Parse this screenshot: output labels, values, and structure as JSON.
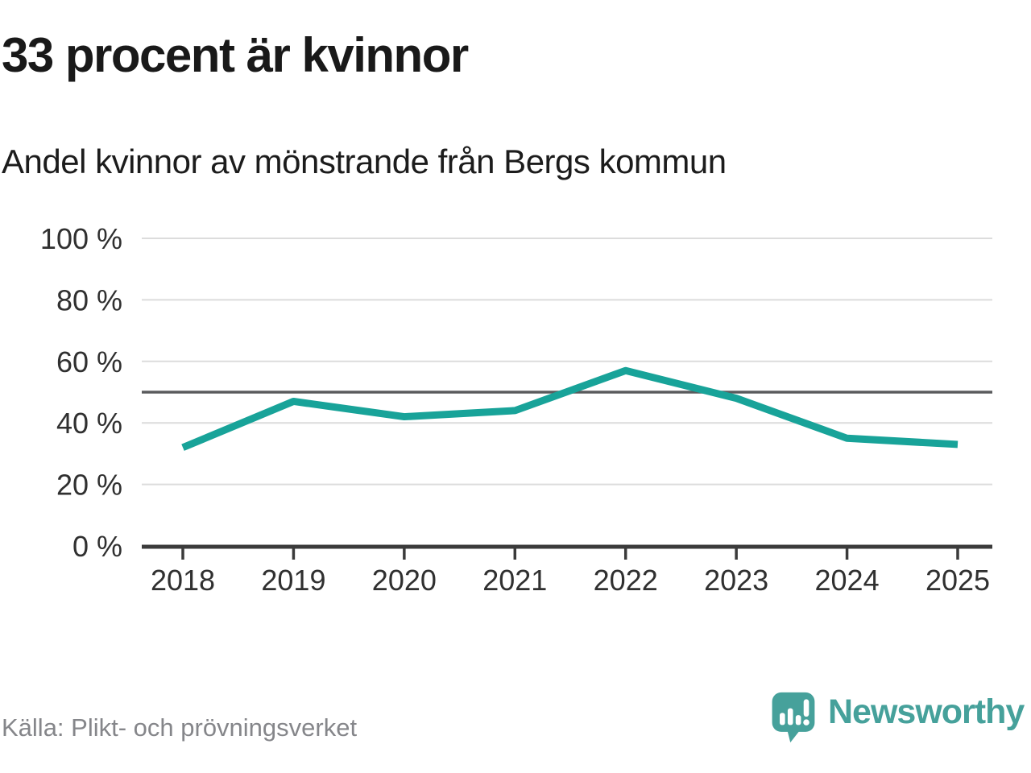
{
  "header": {
    "title": "33 procent är kvinnor",
    "subtitle": "Andel kvinnor av mönstrande från Bergs kommun"
  },
  "footer": {
    "source": "Källa: Plikt- och prövningsverket",
    "logo_text": "Newsworthy"
  },
  "colors": {
    "line": "#18a399",
    "reference_line": "#5a5b5d",
    "grid": "#dcdcdc",
    "axis": "#3b3b3b",
    "tick_label": "#303030",
    "title_text": "#191919",
    "muted_text": "#85868a",
    "logo_teal": "#46a19b",
    "logo_bars": "#ffffff"
  },
  "chart_data": {
    "type": "line",
    "x": [
      "2018",
      "2019",
      "2020",
      "2021",
      "2022",
      "2023",
      "2024",
      "2025"
    ],
    "series": [
      {
        "name": "Andel kvinnor av mönstrande",
        "color": "#18a399",
        "values": [
          32,
          47,
          42,
          44,
          57,
          48,
          35,
          33
        ]
      }
    ],
    "title": "33 procent är kvinnor",
    "subtitle": "Andel kvinnor av mönstrande från Bergs kommun",
    "source": "Källa: Plikt- och prövningsverket",
    "xlabel": "",
    "ylabel": "",
    "ylim": [
      0,
      100
    ],
    "yticks": [
      0,
      20,
      40,
      60,
      80,
      100
    ],
    "ytick_suffix": " %",
    "reference_line": 50,
    "grid": true,
    "legend": false
  }
}
